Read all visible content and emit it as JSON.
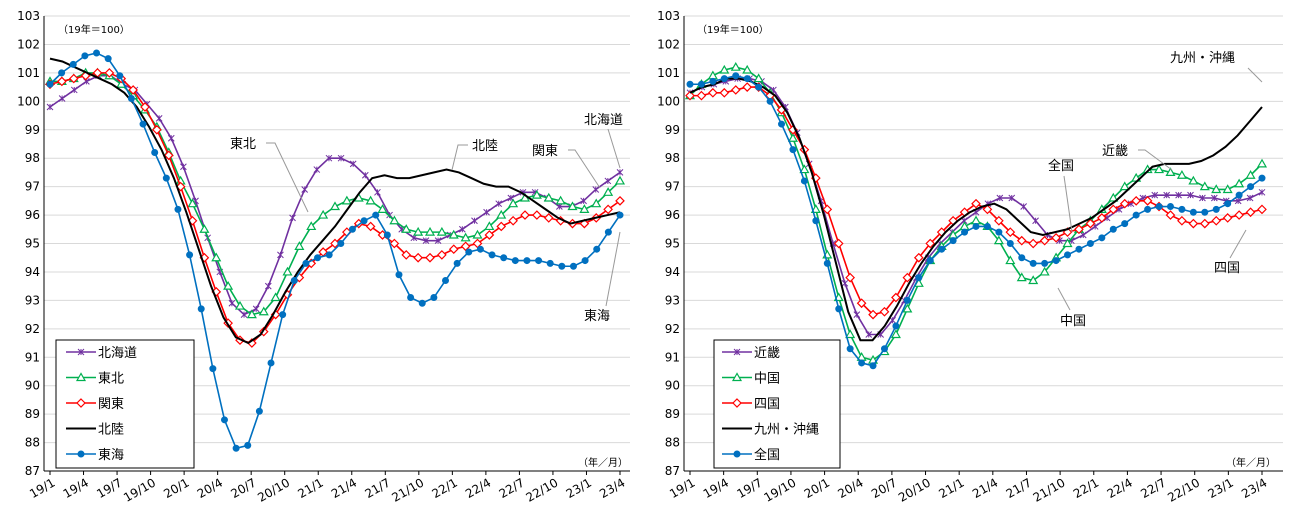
{
  "chart_data": [
    {
      "type": "line",
      "note_unit": "（19年＝100）",
      "x_unit": "（年／月）",
      "x_labels": [
        "19/1",
        "19/4",
        "19/7",
        "19/10",
        "20/1",
        "20/4",
        "20/7",
        "20/10",
        "21/1",
        "21/4",
        "21/7",
        "21/10",
        "22/1",
        "22/4",
        "22/7",
        "22/10",
        "23/1",
        "23/4"
      ],
      "ylim": [
        87,
        103
      ],
      "yticks": [
        87,
        88,
        89,
        90,
        91,
        92,
        93,
        94,
        95,
        96,
        97,
        98,
        99,
        100,
        101,
        102,
        103
      ],
      "legend_position": "bottom-left",
      "series": [
        {
          "name": "北海道",
          "color": "#7030a0",
          "marker": "x",
          "values": [
            99.8,
            100.1,
            100.4,
            100.7,
            100.9,
            100.9,
            100.6,
            100.4,
            99.9,
            99.4,
            98.7,
            97.7,
            96.5,
            95.2,
            94.0,
            92.9,
            92.5,
            92.7,
            93.5,
            94.6,
            95.9,
            96.9,
            97.6,
            98.0,
            98.0,
            97.8,
            97.4,
            96.8,
            96.0,
            95.5,
            95.2,
            95.1,
            95.1,
            95.3,
            95.5,
            95.8,
            96.1,
            96.4,
            96.6,
            96.8,
            96.8,
            96.6,
            96.3,
            96.3,
            96.5,
            96.9,
            97.2,
            97.5
          ]
        },
        {
          "name": "東北",
          "color": "#00b050",
          "marker": "triangle",
          "values": [
            100.7,
            100.7,
            100.8,
            101.0,
            101.0,
            100.9,
            100.6,
            100.2,
            99.7,
            99.1,
            98.2,
            97.2,
            96.4,
            95.5,
            94.5,
            93.5,
            92.8,
            92.5,
            92.6,
            93.1,
            94.0,
            94.9,
            95.6,
            96.0,
            96.3,
            96.5,
            96.6,
            96.5,
            96.2,
            95.8,
            95.5,
            95.4,
            95.4,
            95.4,
            95.3,
            95.2,
            95.3,
            95.6,
            96.0,
            96.4,
            96.6,
            96.7,
            96.6,
            96.5,
            96.3,
            96.2,
            96.4,
            96.8,
            97.2
          ]
        },
        {
          "name": "関東",
          "color": "#ff0000",
          "marker": "diamond",
          "values": [
            100.6,
            100.7,
            100.8,
            100.9,
            101.0,
            101.0,
            100.8,
            100.4,
            99.8,
            99.0,
            98.1,
            97.0,
            95.8,
            94.5,
            93.3,
            92.2,
            91.6,
            91.5,
            91.9,
            92.5,
            93.2,
            93.8,
            94.3,
            94.7,
            95.0,
            95.4,
            95.7,
            95.6,
            95.3,
            95.0,
            94.6,
            94.5,
            94.5,
            94.6,
            94.8,
            94.9,
            95.0,
            95.3,
            95.6,
            95.8,
            96.0,
            96.0,
            95.9,
            95.8,
            95.7,
            95.7,
            95.9,
            96.2,
            96.5
          ]
        },
        {
          "name": "北陸",
          "color": "#000000",
          "marker": "none",
          "values": [
            101.5,
            101.4,
            101.2,
            101.0,
            100.8,
            100.6,
            100.3,
            99.8,
            99.1,
            98.3,
            97.3,
            96.1,
            94.8,
            93.5,
            92.4,
            91.7,
            91.5,
            91.8,
            92.5,
            93.3,
            94.0,
            94.6,
            95.1,
            95.6,
            96.2,
            96.8,
            97.3,
            97.4,
            97.3,
            97.3,
            97.4,
            97.5,
            97.6,
            97.5,
            97.3,
            97.1,
            97.0,
            97.0,
            96.8,
            96.5,
            96.2,
            95.9,
            95.7,
            95.8,
            95.9,
            96.0,
            96.1
          ]
        },
        {
          "name": "東海",
          "color": "#0070c0",
          "marker": "circle",
          "values": [
            100.6,
            101.0,
            101.3,
            101.6,
            101.7,
            101.5,
            100.9,
            100.1,
            99.2,
            98.2,
            97.3,
            96.2,
            94.6,
            92.7,
            90.6,
            88.8,
            87.8,
            87.9,
            89.1,
            90.8,
            92.5,
            93.7,
            94.3,
            94.5,
            94.6,
            95.0,
            95.5,
            95.8,
            96.0,
            95.3,
            93.9,
            93.1,
            92.9,
            93.1,
            93.7,
            94.3,
            94.7,
            94.8,
            94.6,
            94.5,
            94.4,
            94.4,
            94.4,
            94.3,
            94.2,
            94.2,
            94.4,
            94.8,
            95.4,
            96.0
          ]
        }
      ],
      "annotations": [
        "東北",
        "北陸",
        "関東",
        "北海道",
        "東海"
      ]
    },
    {
      "type": "line",
      "note_unit": "（19年＝100）",
      "x_unit": "（年／月）",
      "x_labels": [
        "19/1",
        "19/4",
        "19/7",
        "19/10",
        "20/1",
        "20/4",
        "20/7",
        "20/10",
        "21/1",
        "21/4",
        "21/7",
        "21/10",
        "22/1",
        "22/4",
        "22/7",
        "22/10",
        "23/1",
        "23/4"
      ],
      "ylim": [
        87,
        103
      ],
      "yticks": [
        87,
        88,
        89,
        90,
        91,
        92,
        93,
        94,
        95,
        96,
        97,
        98,
        99,
        100,
        101,
        102,
        103
      ],
      "legend_position": "bottom-left",
      "series": [
        {
          "name": "近畿",
          "color": "#7030a0",
          "marker": "x",
          "values": [
            100.3,
            100.5,
            100.6,
            100.7,
            100.8,
            100.8,
            100.7,
            100.4,
            99.8,
            98.9,
            97.8,
            96.5,
            95.0,
            93.6,
            92.5,
            91.8,
            91.8,
            92.3,
            93.0,
            93.8,
            94.5,
            95.0,
            95.4,
            95.8,
            96.1,
            96.4,
            96.6,
            96.6,
            96.3,
            95.8,
            95.3,
            95.1,
            95.1,
            95.3,
            95.6,
            95.9,
            96.2,
            96.4,
            96.6,
            96.7,
            96.7,
            96.7,
            96.7,
            96.6,
            96.6,
            96.5,
            96.5,
            96.6,
            96.8
          ]
        },
        {
          "name": "中国",
          "color": "#00b050",
          "marker": "triangle",
          "values": [
            100.2,
            100.6,
            100.9,
            101.1,
            101.2,
            101.1,
            100.8,
            100.3,
            99.6,
            98.7,
            97.6,
            96.2,
            94.6,
            93.1,
            91.8,
            91.0,
            90.9,
            91.2,
            91.8,
            92.7,
            93.6,
            94.4,
            94.9,
            95.3,
            95.6,
            95.8,
            95.6,
            95.1,
            94.4,
            93.8,
            93.7,
            94.0,
            94.5,
            95.0,
            95.5,
            95.8,
            96.2,
            96.6,
            97.0,
            97.3,
            97.6,
            97.6,
            97.5,
            97.4,
            97.2,
            97.0,
            96.9,
            96.9,
            97.1,
            97.4,
            97.8
          ]
        },
        {
          "name": "四国",
          "color": "#ff0000",
          "marker": "diamond",
          "values": [
            100.2,
            100.2,
            100.3,
            100.3,
            100.4,
            100.5,
            100.5,
            100.2,
            99.7,
            99.0,
            98.3,
            97.3,
            96.2,
            95.0,
            93.8,
            92.9,
            92.5,
            92.6,
            93.1,
            93.8,
            94.5,
            95.0,
            95.4,
            95.8,
            96.1,
            96.4,
            96.2,
            95.8,
            95.4,
            95.1,
            95.0,
            95.1,
            95.2,
            95.4,
            95.5,
            95.7,
            95.9,
            96.2,
            96.4,
            96.5,
            96.5,
            96.3,
            96.0,
            95.8,
            95.7,
            95.7,
            95.8,
            95.9,
            96.0,
            96.1,
            96.2
          ]
        },
        {
          "name": "九州・沖縄",
          "color": "#000000",
          "marker": "none",
          "values": [
            100.3,
            100.5,
            100.6,
            100.8,
            100.8,
            100.7,
            100.5,
            100.2,
            99.6,
            98.7,
            97.5,
            96.0,
            94.3,
            92.6,
            91.6,
            91.6,
            92.1,
            92.8,
            93.6,
            94.3,
            94.9,
            95.4,
            95.8,
            96.1,
            96.3,
            96.4,
            96.2,
            95.8,
            95.4,
            95.3,
            95.4,
            95.5,
            95.7,
            95.9,
            96.2,
            96.5,
            96.9,
            97.3,
            97.7,
            97.8,
            97.8,
            97.8,
            97.9,
            98.1,
            98.4,
            98.8,
            99.3,
            99.8
          ]
        },
        {
          "name": "全国",
          "color": "#0070c0",
          "marker": "circle",
          "values": [
            100.6,
            100.6,
            100.7,
            100.8,
            100.9,
            100.8,
            100.5,
            100.0,
            99.2,
            98.3,
            97.2,
            95.8,
            94.3,
            92.7,
            91.3,
            90.8,
            90.7,
            91.3,
            92.1,
            93.0,
            93.8,
            94.4,
            94.8,
            95.1,
            95.4,
            95.6,
            95.6,
            95.4,
            95.0,
            94.5,
            94.3,
            94.3,
            94.4,
            94.6,
            94.8,
            95.0,
            95.2,
            95.5,
            95.7,
            96.0,
            96.2,
            96.3,
            96.3,
            96.2,
            96.1,
            96.1,
            96.2,
            96.4,
            96.7,
            97.0,
            97.3
          ]
        }
      ],
      "annotations": [
        "九州・沖縄",
        "近畿",
        "全国",
        "四国",
        "中国"
      ]
    }
  ]
}
